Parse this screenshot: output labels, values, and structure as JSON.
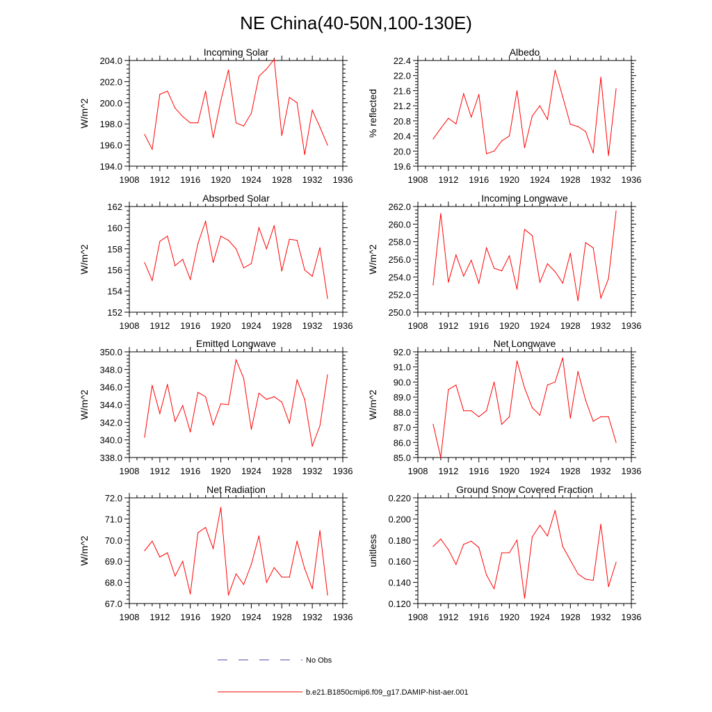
{
  "page": {
    "title": "NE China(40-50N,100-130E)"
  },
  "legend": {
    "items": [
      {
        "label": "No Obs",
        "color": "#4a4aaa",
        "dashed": true
      },
      {
        "label": "b.e21.B1850cmip6.f09_g17.DAMIP-hist-aer.001",
        "color": "#ff0000",
        "dashed": false
      }
    ]
  },
  "chart_data": [
    {
      "type": "line",
      "title": "Incoming Solar",
      "ylabel": "W/m^2",
      "xlim": [
        1908,
        1936
      ],
      "ylim": [
        194,
        204
      ],
      "xticks": [
        1908,
        1912,
        1916,
        1920,
        1924,
        1928,
        1932,
        1936
      ],
      "yticks": [
        194.0,
        196.0,
        198.0,
        200.0,
        202.0,
        204.0
      ],
      "ytick_labels": [
        "194.0",
        "196.0",
        "198.0",
        "200.0",
        "202.0",
        "204.0"
      ],
      "x": [
        1910,
        1911,
        1912,
        1913,
        1914,
        1915,
        1916,
        1917,
        1918,
        1919,
        1920,
        1921,
        1922,
        1923,
        1924,
        1925,
        1926,
        1927,
        1928,
        1929,
        1930,
        1931,
        1932,
        1933,
        1934
      ],
      "series": [
        {
          "values": [
            197.0,
            195.6,
            200.8,
            201.1,
            199.5,
            198.7,
            198.1,
            198.1,
            201.1,
            196.7,
            200.2,
            203.1,
            198.1,
            197.8,
            199.0,
            202.5,
            203.2,
            204.1,
            196.9,
            200.5,
            200.0,
            195.1,
            199.3,
            197.7,
            196.0
          ]
        }
      ]
    },
    {
      "type": "line",
      "title": "Albedo",
      "ylabel": "% reflected",
      "xlim": [
        1908,
        1936
      ],
      "ylim": [
        19.6,
        22.4
      ],
      "xticks": [
        1908,
        1912,
        1916,
        1920,
        1924,
        1928,
        1932,
        1936
      ],
      "yticks": [
        19.6,
        20.0,
        20.4,
        20.8,
        21.2,
        21.6,
        22.0,
        22.4
      ],
      "ytick_labels": [
        "19.6",
        "20.0",
        "20.4",
        "20.8",
        "21.2",
        "21.6",
        "22.0",
        "22.4"
      ],
      "x": [
        1910,
        1911,
        1912,
        1913,
        1914,
        1915,
        1916,
        1917,
        1918,
        1919,
        1920,
        1921,
        1922,
        1923,
        1924,
        1925,
        1926,
        1927,
        1928,
        1929,
        1930,
        1931,
        1932,
        1933,
        1934
      ],
      "series": [
        {
          "values": [
            20.32,
            20.6,
            20.87,
            20.72,
            21.52,
            20.9,
            21.5,
            19.93,
            20.0,
            20.27,
            20.4,
            21.6,
            20.09,
            20.93,
            21.2,
            20.84,
            22.14,
            21.44,
            20.71,
            20.65,
            20.52,
            19.95,
            21.96,
            19.88,
            21.65
          ]
        }
      ]
    },
    {
      "type": "line",
      "title": "Absorbed Solar",
      "ylabel": "W/m^2",
      "xlim": [
        1908,
        1936
      ],
      "ylim": [
        152,
        162
      ],
      "xticks": [
        1908,
        1912,
        1916,
        1920,
        1924,
        1928,
        1932,
        1936
      ],
      "yticks": [
        152,
        154,
        156,
        158,
        160,
        162
      ],
      "ytick_labels": [
        "152",
        "154",
        "156",
        "158",
        "160",
        "162"
      ],
      "x": [
        1910,
        1911,
        1912,
        1913,
        1914,
        1915,
        1916,
        1917,
        1918,
        1919,
        1920,
        1921,
        1922,
        1923,
        1924,
        1925,
        1926,
        1927,
        1928,
        1929,
        1930,
        1931,
        1932,
        1933,
        1934
      ],
      "series": [
        {
          "values": [
            156.7,
            155.0,
            158.7,
            159.2,
            156.4,
            157.0,
            155.1,
            158.5,
            160.6,
            156.7,
            159.2,
            158.8,
            158.0,
            156.2,
            156.6,
            160.0,
            158.0,
            160.2,
            155.9,
            158.9,
            158.8,
            156.0,
            155.4,
            158.1,
            153.3
          ]
        }
      ]
    },
    {
      "type": "line",
      "title": "Incoming Longwave",
      "ylabel": "W/m^2",
      "xlim": [
        1908,
        1936
      ],
      "ylim": [
        250,
        262
      ],
      "xticks": [
        1908,
        1912,
        1916,
        1920,
        1924,
        1928,
        1932,
        1936
      ],
      "yticks": [
        250.0,
        252.0,
        254.0,
        256.0,
        258.0,
        260.0,
        262.0
      ],
      "ytick_labels": [
        "250.0",
        "252.0",
        "254.0",
        "256.0",
        "258.0",
        "260.0",
        "262.0"
      ],
      "x": [
        1910,
        1911,
        1912,
        1913,
        1914,
        1915,
        1916,
        1917,
        1918,
        1919,
        1920,
        1921,
        1922,
        1923,
        1924,
        1925,
        1926,
        1927,
        1928,
        1929,
        1930,
        1931,
        1932,
        1933,
        1934
      ],
      "series": [
        {
          "values": [
            253.1,
            261.2,
            253.4,
            256.5,
            254.1,
            255.9,
            253.3,
            257.3,
            255.0,
            254.7,
            256.4,
            252.6,
            259.4,
            258.7,
            253.4,
            255.5,
            254.6,
            253.3,
            256.7,
            251.3,
            257.9,
            257.3,
            251.6,
            253.8,
            261.5
          ]
        }
      ]
    },
    {
      "type": "line",
      "title": "Emitted Longwave",
      "ylabel": "W/m^2",
      "xlim": [
        1908,
        1936
      ],
      "ylim": [
        338,
        350
      ],
      "xticks": [
        1908,
        1912,
        1916,
        1920,
        1924,
        1928,
        1932,
        1936
      ],
      "yticks": [
        338.0,
        340.0,
        342.0,
        344.0,
        346.0,
        348.0,
        350.0
      ],
      "ytick_labels": [
        "338.0",
        "340.0",
        "342.0",
        "344.0",
        "346.0",
        "348.0",
        "350.0"
      ],
      "x": [
        1910,
        1911,
        1912,
        1913,
        1914,
        1915,
        1916,
        1917,
        1918,
        1919,
        1920,
        1921,
        1922,
        1923,
        1924,
        1925,
        1926,
        1927,
        1928,
        1929,
        1930,
        1931,
        1932,
        1933,
        1934
      ],
      "series": [
        {
          "values": [
            340.3,
            346.2,
            343.0,
            346.3,
            342.1,
            343.9,
            340.9,
            345.4,
            344.9,
            341.7,
            344.1,
            344.0,
            349.1,
            347.0,
            341.2,
            345.3,
            344.6,
            344.9,
            344.3,
            341.9,
            346.8,
            344.6,
            339.3,
            341.6,
            347.4
          ]
        }
      ]
    },
    {
      "type": "line",
      "title": "Net Longwave",
      "ylabel": "W/m^2",
      "xlim": [
        1908,
        1936
      ],
      "ylim": [
        85,
        92
      ],
      "xticks": [
        1908,
        1912,
        1916,
        1920,
        1924,
        1928,
        1932,
        1936
      ],
      "yticks": [
        85.0,
        86.0,
        87.0,
        88.0,
        89.0,
        90.0,
        91.0,
        92.0
      ],
      "ytick_labels": [
        "85.0",
        "86.0",
        "87.0",
        "88.0",
        "89.0",
        "90.0",
        "91.0",
        "92.0"
      ],
      "x": [
        1910,
        1911,
        1912,
        1913,
        1914,
        1915,
        1916,
        1917,
        1918,
        1919,
        1920,
        1921,
        1922,
        1923,
        1924,
        1925,
        1926,
        1927,
        1928,
        1929,
        1930,
        1931,
        1932,
        1933,
        1934
      ],
      "series": [
        {
          "values": [
            87.2,
            85.0,
            89.5,
            89.8,
            88.1,
            88.1,
            87.7,
            88.1,
            90.0,
            87.2,
            87.7,
            91.4,
            89.6,
            88.3,
            87.8,
            89.8,
            90.0,
            91.6,
            87.6,
            90.7,
            88.8,
            87.4,
            87.7,
            87.7,
            86.0
          ]
        }
      ]
    },
    {
      "type": "line",
      "title": "Net Radiation",
      "ylabel": "W/m^2",
      "xlim": [
        1908,
        1936
      ],
      "ylim": [
        67,
        72
      ],
      "xticks": [
        1908,
        1912,
        1916,
        1920,
        1924,
        1928,
        1932,
        1936
      ],
      "yticks": [
        67.0,
        68.0,
        69.0,
        70.0,
        71.0,
        72.0
      ],
      "ytick_labels": [
        "67.0",
        "68.0",
        "69.0",
        "70.0",
        "71.0",
        "72.0"
      ],
      "x": [
        1910,
        1911,
        1912,
        1913,
        1914,
        1915,
        1916,
        1917,
        1918,
        1919,
        1920,
        1921,
        1922,
        1923,
        1924,
        1925,
        1926,
        1927,
        1928,
        1929,
        1930,
        1931,
        1932,
        1933,
        1934
      ],
      "series": [
        {
          "values": [
            69.5,
            69.95,
            69.2,
            69.4,
            68.3,
            69.0,
            67.45,
            70.35,
            70.6,
            69.6,
            71.55,
            67.4,
            68.4,
            67.9,
            68.85,
            70.2,
            68.0,
            68.7,
            68.25,
            68.25,
            69.95,
            68.65,
            67.7,
            70.45,
            67.4
          ]
        }
      ]
    },
    {
      "type": "line",
      "title": "Ground Snow Covered Fraction",
      "ylabel": "unitless",
      "xlim": [
        1908,
        1936
      ],
      "ylim": [
        0.12,
        0.22
      ],
      "xticks": [
        1908,
        1912,
        1916,
        1920,
        1924,
        1928,
        1932,
        1936
      ],
      "yticks": [
        0.12,
        0.14,
        0.16,
        0.18,
        0.2,
        0.22
      ],
      "ytick_labels": [
        "0.120",
        "0.140",
        "0.160",
        "0.180",
        "0.200",
        "0.220"
      ],
      "x": [
        1910,
        1911,
        1912,
        1913,
        1914,
        1915,
        1916,
        1917,
        1918,
        1919,
        1920,
        1921,
        1922,
        1923,
        1924,
        1925,
        1926,
        1927,
        1928,
        1929,
        1930,
        1931,
        1932,
        1933,
        1934
      ],
      "series": [
        {
          "values": [
            0.174,
            0.181,
            0.171,
            0.157,
            0.176,
            0.179,
            0.173,
            0.147,
            0.134,
            0.168,
            0.168,
            0.18,
            0.125,
            0.183,
            0.194,
            0.184,
            0.208,
            0.174,
            0.161,
            0.148,
            0.143,
            0.142,
            0.195,
            0.136,
            0.159
          ]
        }
      ]
    }
  ]
}
